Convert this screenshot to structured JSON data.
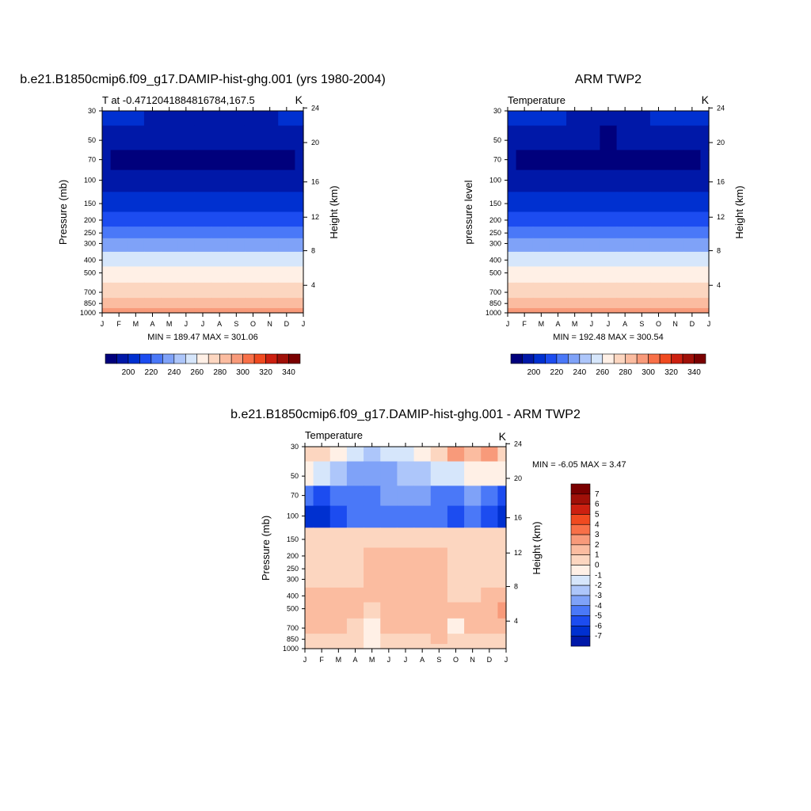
{
  "colors": {
    "abs_scale": [
      "#00007c",
      "#0018a8",
      "#0030d0",
      "#1c4cf0",
      "#4a78f8",
      "#7fa2f8",
      "#adc6fa",
      "#d6e6fb",
      "#fff0e6",
      "#fcd6c0",
      "#fbbca0",
      "#f89a7a",
      "#f87048",
      "#f04a20",
      "#cc2010",
      "#a01008",
      "#7a0000"
    ],
    "diff_scale": [
      "#00007c",
      "#0018a8",
      "#0030d0",
      "#1c4cf0",
      "#4a78f8",
      "#7fa2f8",
      "#adc6fa",
      "#d6e6fb",
      "#fff0e6",
      "#fcd6c0",
      "#fbbca0",
      "#f89a7a",
      "#f87048",
      "#f04a20",
      "#cc2010",
      "#a01008",
      "#7a0000"
    ]
  },
  "chart_data": [
    {
      "type": "heatmap",
      "title": "b.e21.B1850cmip6.f09_g17.DAMIP-hist-ghg.001 (yrs 1980-2004)",
      "subtitle_left": "T at -0.4712041884816784,167.5",
      "subtitle_right": "K",
      "ylabel": "Pressure (mb)",
      "ylabel_right": "Height (km)",
      "x": [
        "J",
        "F",
        "M",
        "A",
        "M",
        "J",
        "J",
        "A",
        "S",
        "O",
        "N",
        "D",
        "J"
      ],
      "yticks": [
        "30",
        "50",
        "70",
        "100",
        "150",
        "200",
        "250",
        "300",
        "400",
        "500",
        "700",
        "850",
        "1000"
      ],
      "yticks_right": [
        "24",
        "20",
        "16",
        "12",
        "8",
        "4"
      ],
      "stats": "MIN = 189.47 MAX = 301.06",
      "colorbar_labels": [
        "200",
        "220",
        "240",
        "260",
        "280",
        "300",
        "320",
        "340"
      ],
      "levels": [
        "30",
        "50",
        "70",
        "100",
        "150",
        "200",
        "250",
        "300",
        "400",
        "500",
        "700",
        "850",
        "1000"
      ],
      "values": [
        [
          205,
          205,
          205,
          204,
          204,
          204,
          204,
          204,
          204,
          204,
          204,
          205,
          205
        ],
        [
          200,
          199,
          198,
          197,
          196,
          195,
          195,
          195,
          196,
          197,
          198,
          199,
          200
        ],
        [
          195,
          194,
          193,
          192,
          191,
          190,
          189,
          190,
          191,
          192,
          193,
          194,
          195
        ],
        [
          196,
          196,
          196,
          196,
          196,
          196,
          196,
          196,
          196,
          196,
          196,
          196,
          196
        ],
        [
          208,
          208,
          208,
          208,
          208,
          208,
          208,
          208,
          208,
          208,
          208,
          208,
          208
        ],
        [
          220,
          220,
          220,
          220,
          220,
          220,
          220,
          220,
          220,
          220,
          220,
          220,
          220
        ],
        [
          230,
          230,
          230,
          230,
          230,
          230,
          230,
          230,
          230,
          230,
          230,
          230,
          230
        ],
        [
          240,
          240,
          240,
          240,
          240,
          240,
          240,
          240,
          240,
          240,
          240,
          240,
          240
        ],
        [
          255,
          255,
          255,
          255,
          255,
          255,
          255,
          255,
          255,
          255,
          255,
          255,
          255
        ],
        [
          266,
          266,
          266,
          266,
          266,
          266,
          266,
          266,
          266,
          266,
          266,
          266,
          266
        ],
        [
          280,
          280,
          280,
          280,
          280,
          280,
          280,
          280,
          280,
          280,
          280,
          280,
          280
        ],
        [
          288,
          288,
          288,
          288,
          288,
          288,
          288,
          288,
          288,
          288,
          288,
          288,
          288
        ],
        [
          298,
          298,
          298,
          298,
          298,
          298,
          298,
          298,
          298,
          298,
          298,
          298,
          298
        ]
      ]
    },
    {
      "type": "heatmap",
      "title": "ARM TWP2",
      "subtitle_left": "Temperature",
      "subtitle_right": "K",
      "ylabel": "pressure level",
      "ylabel_right": "Height (km)",
      "x": [
        "J",
        "F",
        "M",
        "A",
        "M",
        "J",
        "J",
        "A",
        "S",
        "O",
        "N",
        "D",
        "J"
      ],
      "yticks": [
        "30",
        "50",
        "70",
        "100",
        "150",
        "200",
        "250",
        "300",
        "400",
        "500",
        "700",
        "850",
        "1000"
      ],
      "yticks_right": [
        "24",
        "20",
        "16",
        "12",
        "8",
        "4"
      ],
      "stats": "MIN = 192.48 MAX = 300.54",
      "colorbar_labels": [
        "200",
        "220",
        "240",
        "260",
        "280",
        "300",
        "320",
        "340"
      ],
      "levels": [
        "30",
        "50",
        "70",
        "100",
        "150",
        "200",
        "250",
        "300",
        "400",
        "500",
        "700",
        "850",
        "1000"
      ],
      "values": [
        [
          206,
          206,
          205,
          205,
          204,
          204,
          204,
          204,
          204,
          205,
          205,
          206,
          206
        ],
        [
          200,
          199,
          198,
          197,
          196,
          195,
          194,
          195,
          196,
          197,
          198,
          199,
          200
        ],
        [
          195,
          194,
          193,
          192,
          191,
          190,
          189,
          190,
          191,
          192,
          193,
          194,
          195
        ],
        [
          195,
          195,
          195,
          195,
          195,
          195,
          195,
          195,
          195,
          195,
          195,
          195,
          195
        ],
        [
          206,
          206,
          206,
          206,
          206,
          206,
          206,
          206,
          206,
          206,
          206,
          206,
          206
        ],
        [
          218,
          218,
          218,
          218,
          218,
          218,
          218,
          218,
          218,
          218,
          218,
          218,
          218
        ],
        [
          229,
          229,
          229,
          229,
          229,
          229,
          229,
          229,
          229,
          229,
          229,
          229,
          229
        ],
        [
          240,
          240,
          240,
          240,
          240,
          240,
          240,
          240,
          240,
          240,
          240,
          240,
          240
        ],
        [
          255,
          255,
          255,
          255,
          255,
          255,
          255,
          255,
          255,
          255,
          255,
          255,
          255
        ],
        [
          266,
          266,
          266,
          266,
          266,
          266,
          266,
          266,
          266,
          266,
          266,
          266,
          266
        ],
        [
          278,
          278,
          278,
          278,
          278,
          278,
          278,
          278,
          278,
          278,
          278,
          278,
          278
        ],
        [
          286,
          286,
          286,
          286,
          286,
          286,
          286,
          286,
          286,
          286,
          286,
          286,
          286
        ],
        [
          296,
          296,
          296,
          296,
          296,
          296,
          296,
          296,
          296,
          296,
          296,
          296,
          296
        ]
      ]
    },
    {
      "type": "heatmap",
      "title": "b.e21.B1850cmip6.f09_g17.DAMIP-hist-ghg.001 - ARM TWP2",
      "subtitle_left": "Temperature",
      "subtitle_right": "K",
      "ylabel": "Pressure (mb)",
      "ylabel_right": "Height (km)",
      "x": [
        "J",
        "F",
        "M",
        "A",
        "M",
        "J",
        "J",
        "A",
        "S",
        "O",
        "N",
        "D",
        "J"
      ],
      "yticks": [
        "30",
        "50",
        "70",
        "100",
        "150",
        "200",
        "250",
        "300",
        "400",
        "500",
        "700",
        "850",
        "1000"
      ],
      "yticks_right": [
        "24",
        "20",
        "16",
        "12",
        "8",
        "4"
      ],
      "stats": "MIN =  -6.05 MAX =   3.47",
      "colorbar_labels": [
        "7",
        "6",
        "5",
        "4",
        "3",
        "2",
        "1",
        "0",
        "-1",
        "-2",
        "-3",
        "-4",
        "-5",
        "-6",
        "-7"
      ],
      "levels": [
        "30",
        "50",
        "70",
        "100",
        "150",
        "200",
        "250",
        "300",
        "400",
        "500",
        "700",
        "850",
        "1000"
      ],
      "values": [
        [
          1.5,
          1.0,
          0.2,
          -0.5,
          -1.5,
          -1.0,
          -0.3,
          0.5,
          1.0,
          3.0,
          2.0,
          3.0,
          1.5
        ],
        [
          0.5,
          -0.5,
          -1.5,
          -2.5,
          -3.0,
          -2.5,
          -2.0,
          -1.5,
          -1.0,
          -0.5,
          0.0,
          0.5,
          0.5
        ],
        [
          -4.0,
          -4.5,
          -4.0,
          -3.5,
          -3.5,
          -3.0,
          -3.0,
          -3.0,
          -3.5,
          -3.5,
          -3.0,
          -4.0,
          -4.5
        ],
        [
          -5.5,
          -6.0,
          -5.0,
          -4.0,
          -4.0,
          -3.5,
          -3.5,
          -3.5,
          -4.0,
          -4.5,
          -4.0,
          -5.0,
          -6.0
        ],
        [
          1.2,
          1.5,
          1.5,
          1.5,
          1.5,
          1.5,
          1.5,
          1.5,
          1.5,
          1.5,
          1.5,
          1.5,
          1.2
        ],
        [
          1.5,
          1.5,
          1.5,
          1.5,
          2.0,
          2.5,
          2.5,
          2.5,
          2.0,
          1.5,
          1.5,
          1.5,
          1.5
        ],
        [
          1.5,
          1.5,
          1.5,
          1.5,
          2.0,
          2.5,
          2.5,
          2.5,
          2.0,
          1.5,
          1.5,
          1.5,
          1.5
        ],
        [
          1.5,
          1.5,
          1.5,
          1.5,
          2.0,
          2.5,
          2.5,
          2.5,
          2.0,
          1.5,
          1.5,
          1.5,
          1.5
        ],
        [
          2.0,
          2.5,
          2.5,
          2.0,
          2.0,
          2.5,
          2.5,
          2.5,
          2.0,
          1.5,
          1.5,
          2.0,
          2.5
        ],
        [
          2.5,
          2.5,
          2.5,
          2.5,
          1.5,
          2.5,
          2.5,
          2.5,
          2.0,
          2.5,
          2.5,
          2.5,
          3.0
        ],
        [
          2.0,
          2.5,
          2.0,
          1.5,
          0.8,
          2.0,
          2.0,
          2.0,
          2.0,
          0.8,
          2.0,
          2.0,
          2.0
        ],
        [
          1.5,
          1.5,
          1.5,
          1.5,
          0.8,
          1.5,
          1.5,
          1.5,
          2.5,
          1.5,
          1.5,
          1.5,
          1.5
        ],
        [
          1.5,
          1.5,
          1.5,
          1.5,
          0.8,
          1.5,
          1.5,
          1.5,
          1.5,
          1.5,
          1.5,
          1.5,
          1.5
        ]
      ]
    }
  ]
}
